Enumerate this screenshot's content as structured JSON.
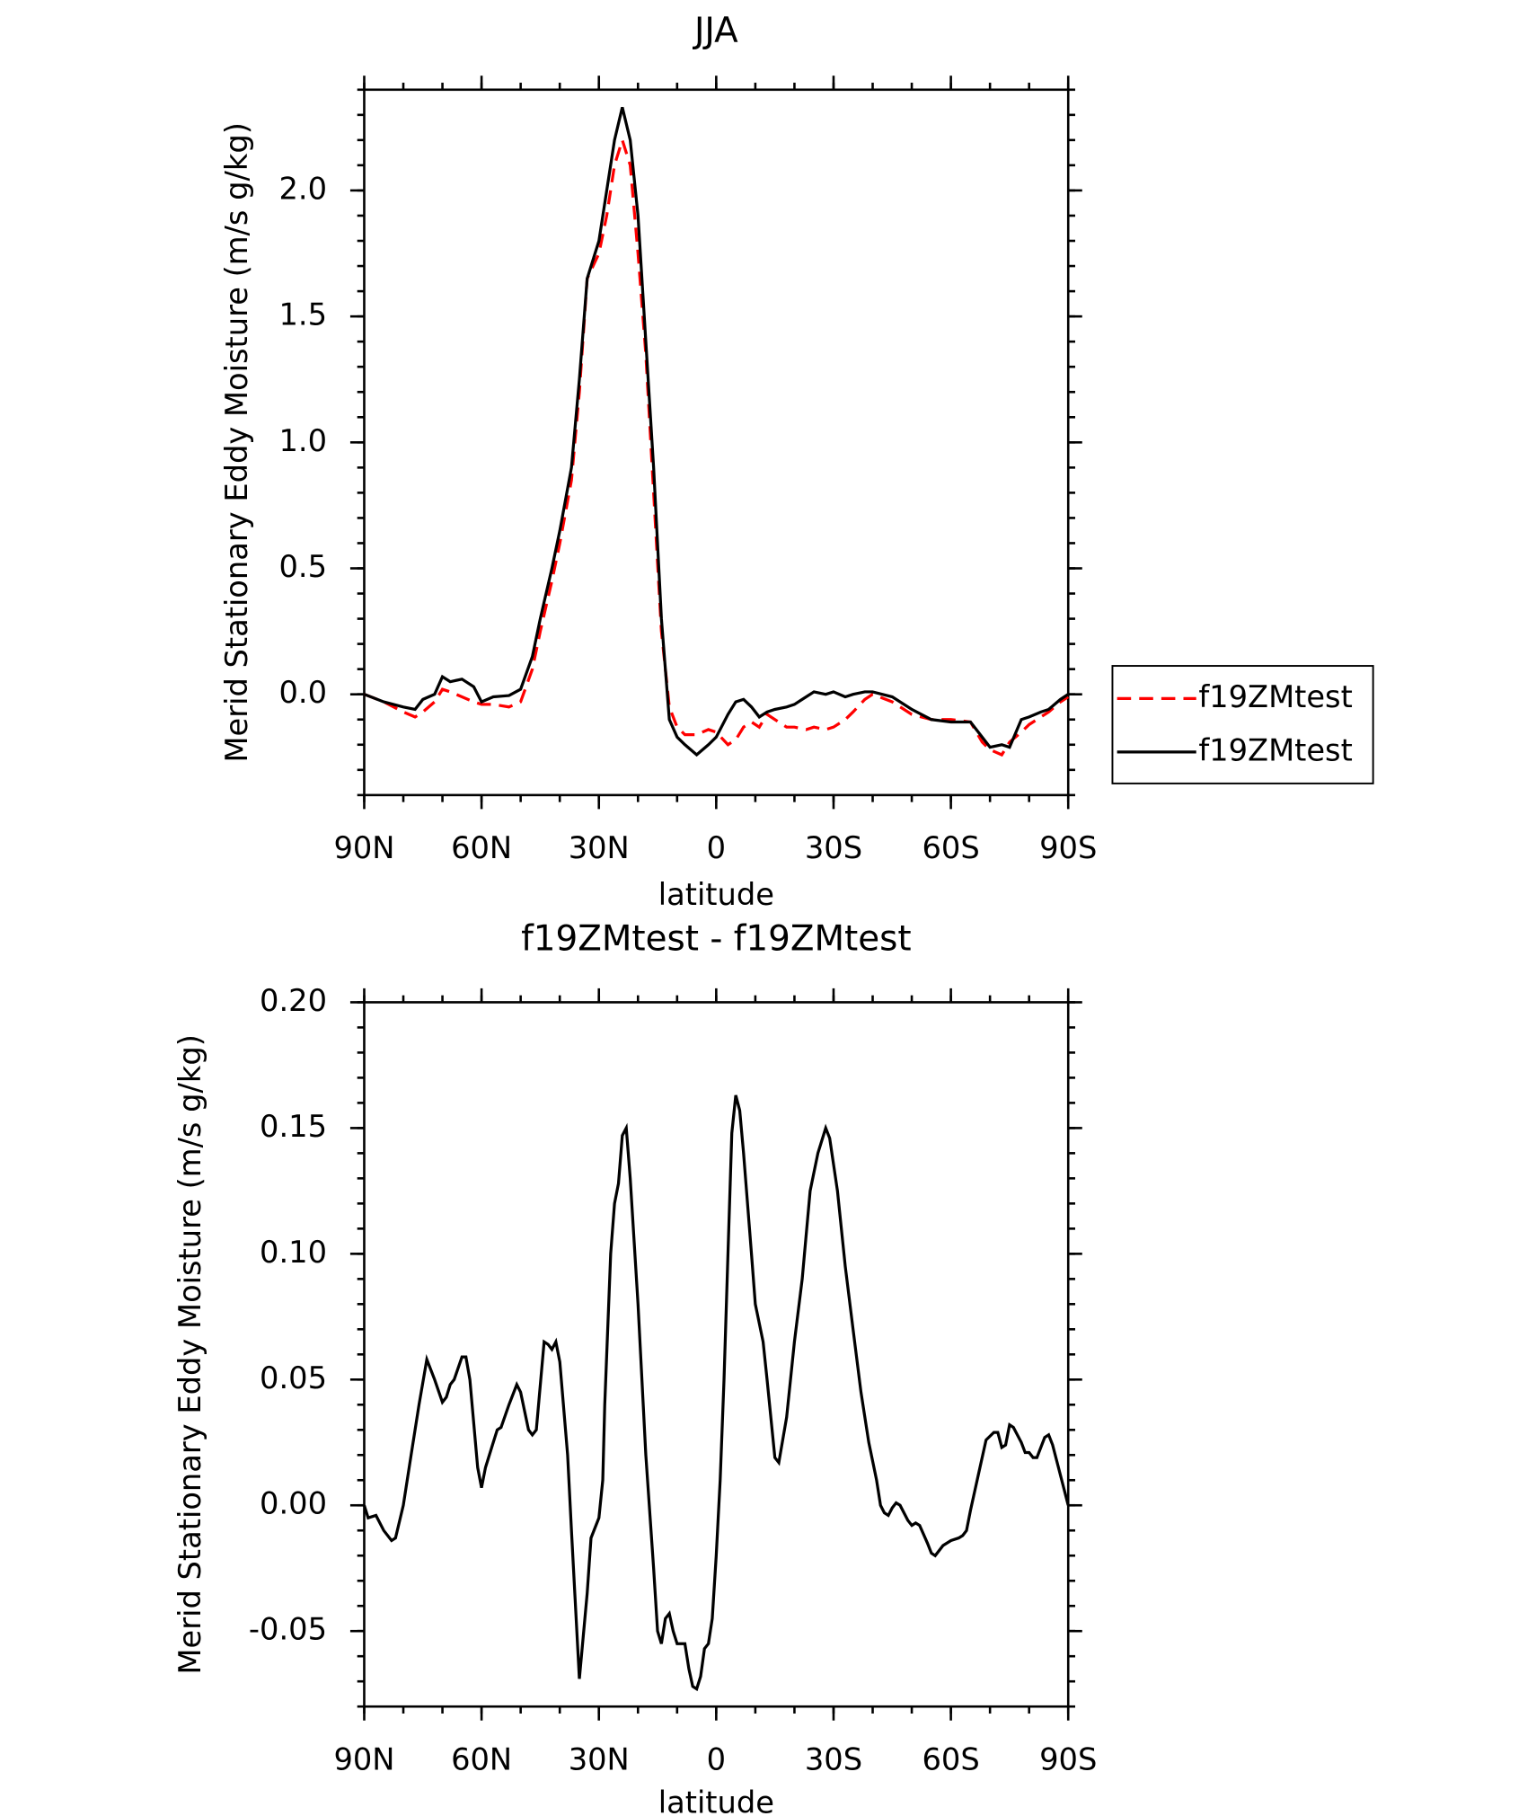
{
  "chart_data": [
    {
      "type": "line",
      "title": "JJA",
      "xlabel": "latitude",
      "ylabel": "Merid Stationary Eddy Moisture (m/s g/kg)",
      "x": [
        90,
        85,
        80,
        77,
        75,
        72,
        70,
        68,
        65,
        62,
        60,
        57,
        53,
        50,
        47,
        45,
        42,
        40,
        37,
        35,
        33,
        30,
        28,
        26,
        24,
        22,
        20,
        18,
        16,
        14,
        12,
        10,
        8,
        5,
        2,
        0,
        -3,
        -5,
        -7,
        -9,
        -11,
        -13,
        -15,
        -18,
        -20,
        -23,
        -25,
        -28,
        -30,
        -33,
        -35,
        -38,
        -40,
        -45,
        -50,
        -55,
        -60,
        -65,
        -68,
        -70,
        -73,
        -75,
        -78,
        -80,
        -83,
        -85,
        -88,
        -90
      ],
      "series": [
        {
          "name": "f19ZMtest",
          "color": "#ff0000",
          "dash": true,
          "values": [
            0,
            -0.03,
            -0.07,
            -0.09,
            -0.07,
            -0.03,
            0.02,
            0.01,
            -0.01,
            -0.03,
            -0.04,
            -0.04,
            -0.05,
            -0.03,
            0.1,
            0.25,
            0.45,
            0.6,
            0.85,
            1.2,
            1.65,
            1.75,
            1.9,
            2.1,
            2.2,
            2.1,
            1.75,
            1.35,
            0.8,
            0.25,
            -0.05,
            -0.13,
            -0.16,
            -0.16,
            -0.14,
            -0.15,
            -0.2,
            -0.18,
            -0.13,
            -0.11,
            -0.13,
            -0.08,
            -0.1,
            -0.13,
            -0.13,
            -0.14,
            -0.13,
            -0.14,
            -0.13,
            -0.1,
            -0.07,
            -0.02,
            0.0,
            -0.03,
            -0.08,
            -0.1,
            -0.1,
            -0.11,
            -0.19,
            -0.22,
            -0.24,
            -0.19,
            -0.15,
            -0.12,
            -0.09,
            -0.07,
            -0.03,
            -0.01
          ]
        },
        {
          "name": "f19ZMtest",
          "color": "#000000",
          "dash": false,
          "values": [
            0,
            -0.03,
            -0.05,
            -0.06,
            -0.02,
            0.0,
            0.07,
            0.05,
            0.06,
            0.03,
            -0.03,
            -0.01,
            -0.005,
            0.02,
            0.15,
            0.3,
            0.5,
            0.65,
            0.9,
            1.25,
            1.65,
            1.8,
            2.0,
            2.2,
            2.33,
            2.2,
            1.9,
            1.4,
            0.9,
            0.3,
            -0.1,
            -0.17,
            -0.2,
            -0.24,
            -0.2,
            -0.17,
            -0.08,
            -0.03,
            -0.02,
            -0.05,
            -0.09,
            -0.07,
            -0.06,
            -0.05,
            -0.04,
            -0.01,
            0.01,
            0.0,
            0.01,
            -0.01,
            0.0,
            0.01,
            0.01,
            -0.01,
            -0.06,
            -0.1,
            -0.11,
            -0.11,
            -0.17,
            -0.21,
            -0.2,
            -0.21,
            -0.1,
            -0.09,
            -0.07,
            -0.06,
            -0.02,
            0.0
          ]
        }
      ],
      "xlim": [
        90,
        -90
      ],
      "xticks": [
        {
          "value": 90,
          "label": "90N"
        },
        {
          "value": 60,
          "label": "60N"
        },
        {
          "value": 30,
          "label": "30N"
        },
        0,
        {
          "value": -30,
          "label": "30S"
        },
        {
          "value": -60,
          "label": "60S"
        },
        {
          "value": -90,
          "label": "90S"
        }
      ],
      "ylim": [
        -0.4,
        2.4
      ],
      "yticks": [
        {
          "value": 0,
          "label": "0.0"
        },
        0.5,
        {
          "value": 1,
          "label": "1.0"
        },
        1.5,
        {
          "value": 2,
          "label": "2.0"
        }
      ],
      "legend": "right"
    },
    {
      "type": "line",
      "title": "f19ZMtest - f19ZMtest",
      "xlabel": "latitude",
      "ylabel": "Merid Stationary Eddy Moisture (m/s g/kg)",
      "x": [
        90,
        89,
        87,
        85,
        83,
        82,
        80,
        78,
        76,
        74,
        72,
        70,
        69,
        68,
        67,
        65,
        64,
        63,
        61,
        60,
        59,
        57,
        56,
        55,
        53,
        51,
        50,
        48,
        47,
        46,
        44,
        43,
        42,
        41,
        40,
        38,
        37,
        35,
        33,
        32,
        30,
        29,
        28.5,
        28,
        27,
        26,
        25,
        24,
        23,
        22,
        20,
        18,
        16,
        15,
        14,
        13,
        12,
        11,
        10,
        8,
        7,
        6,
        5,
        4,
        3,
        2,
        1,
        0,
        -1,
        -2,
        -3,
        -4,
        -5,
        -6,
        -7,
        -9,
        -10,
        -12,
        -13,
        -15,
        -16,
        -18,
        -20,
        -22,
        -24,
        -26,
        -28,
        -29,
        -31,
        -33,
        -35,
        -37,
        -39,
        -41,
        -42,
        -43,
        -44,
        -45,
        -46,
        -47,
        -49,
        -50,
        -51,
        -52,
        -54,
        -55,
        -56,
        -58,
        -60,
        -62,
        -63,
        -64,
        -65,
        -67,
        -69,
        -71,
        -72,
        -73,
        -74,
        -75,
        -76,
        -78,
        -79,
        -80,
        -81,
        -82,
        -84,
        -85,
        -86,
        -88,
        -90
      ],
      "series": [
        {
          "name": "f19ZMtest - f19ZMtest",
          "color": "#000000",
          "dash": false,
          "values": [
            0,
            -0.005,
            -0.004,
            -0.01,
            -0.014,
            -0.013,
            0.0,
            0.02,
            0.04,
            0.058,
            0.05,
            0.041,
            0.043,
            0.048,
            0.05,
            0.059,
            0.059,
            0.05,
            0.015,
            0.007,
            0.015,
            0.025,
            0.03,
            0.031,
            0.04,
            0.048,
            0.045,
            0.03,
            0.028,
            0.03,
            0.065,
            0.064,
            0.062,
            0.065,
            0.057,
            0.02,
            -0.01,
            -0.069,
            -0.035,
            -0.013,
            -0.005,
            0.01,
            0.04,
            0.06,
            0.1,
            0.12,
            0.128,
            0.147,
            0.15,
            0.13,
            0.08,
            0.02,
            -0.025,
            -0.05,
            -0.055,
            -0.045,
            -0.043,
            -0.05,
            -0.055,
            -0.055,
            -0.065,
            -0.072,
            -0.073,
            -0.068,
            -0.057,
            -0.055,
            -0.045,
            -0.02,
            0.01,
            0.05,
            0.1,
            0.148,
            0.163,
            0.157,
            0.14,
            0.1,
            0.08,
            0.065,
            0.05,
            0.019,
            0.017,
            0.035,
            0.065,
            0.09,
            0.125,
            0.14,
            0.15,
            0.146,
            0.125,
            0.095,
            0.07,
            0.045,
            0.025,
            0.01,
            0.0,
            -0.003,
            -0.004,
            -0.001,
            0.001,
            0.0,
            -0.006,
            -0.008,
            -0.007,
            -0.008,
            -0.015,
            -0.019,
            -0.02,
            -0.016,
            -0.014,
            -0.013,
            -0.012,
            -0.01,
            -0.002,
            0.012,
            0.026,
            0.029,
            0.029,
            0.023,
            0.024,
            0.032,
            0.031,
            0.025,
            0.021,
            0.021,
            0.019,
            0.019,
            0.027,
            0.028,
            0.024,
            0.012,
            0.0
          ]
        }
      ],
      "xlim": [
        90,
        -90
      ],
      "xticks": [
        {
          "value": 90,
          "label": "90N"
        },
        {
          "value": 60,
          "label": "60N"
        },
        {
          "value": 30,
          "label": "30N"
        },
        0,
        {
          "value": -30,
          "label": "30S"
        },
        {
          "value": -60,
          "label": "60S"
        },
        {
          "value": -90,
          "label": "90S"
        }
      ],
      "ylim": [
        -0.08,
        0.2
      ],
      "yticks": [
        -0.05,
        {
          "value": 0,
          "label": "0.00"
        },
        0.05,
        {
          "value": 0.1,
          "label": "0.10"
        },
        0.15,
        {
          "value": 0.2,
          "label": "0.20"
        }
      ]
    }
  ]
}
